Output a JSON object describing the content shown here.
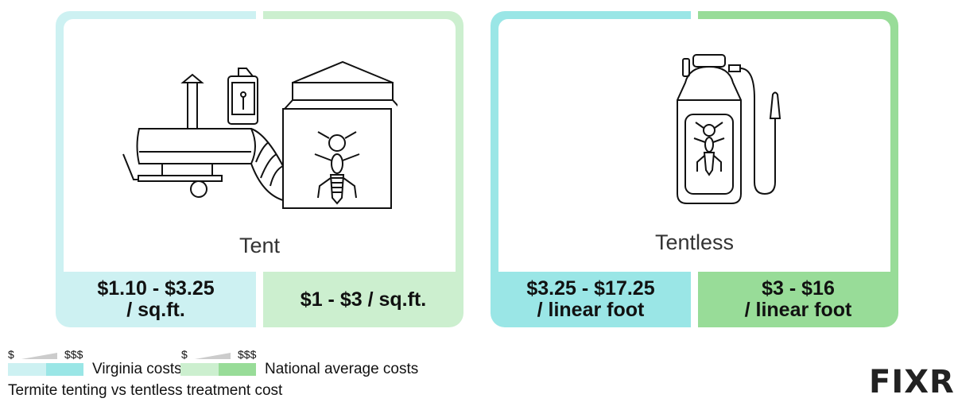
{
  "cards": [
    {
      "label": "Tent",
      "icon": "tent-fumigation-icon",
      "local_price": "$1.10 - $3.25\n/ sq.ft.",
      "local_price_lines": [
        "$1.10 - $3.25",
        "/ sq.ft."
      ],
      "national_price": "$1 - $3 / sq.ft."
    },
    {
      "label": "Tentless",
      "icon": "sprayer-icon",
      "local_price_lines": [
        "$3.25 - $17.25",
        "/ linear foot"
      ],
      "national_price_lines": [
        "$3 - $16",
        "/ linear foot"
      ]
    }
  ],
  "legend": {
    "low": "$",
    "high": "$$$",
    "local_label": "Virginia costs",
    "national_label": "National average costs"
  },
  "caption": "Termite tenting vs tentless treatment cost",
  "logo": "FIXR",
  "colors": {
    "local_light": "#cdf1f2",
    "local_dark": "#9ae6e6",
    "national_light": "#ccefcf",
    "national_dark": "#98dc98"
  }
}
